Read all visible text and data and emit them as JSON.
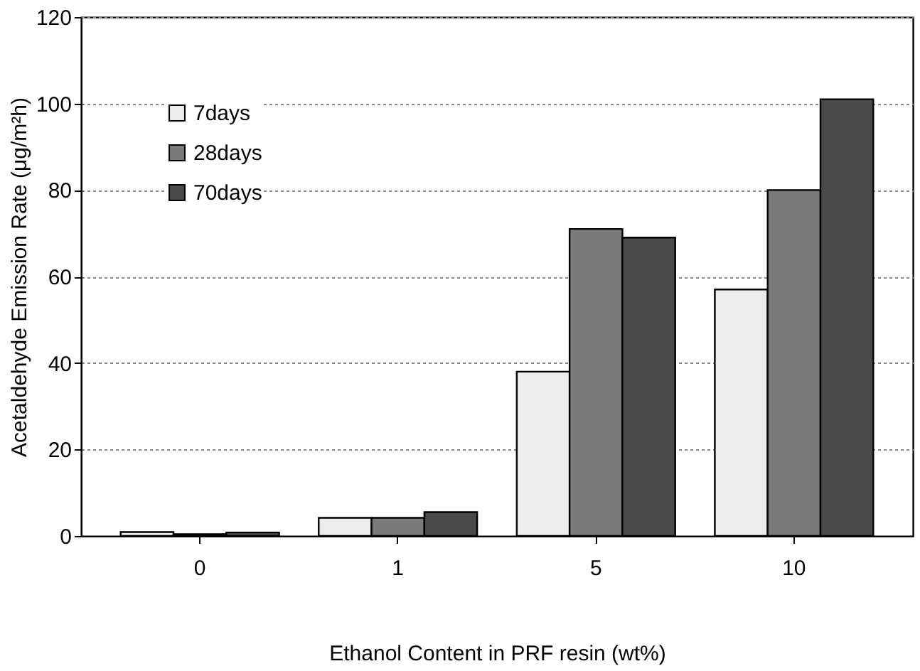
{
  "chart_data": {
    "type": "bar",
    "xlabel": "Ethanol Content in PRF resin (wt%)",
    "ylabel": "Acetaldehyde Emission Rate (μg/m²h)",
    "categories": [
      "0",
      "1",
      "5",
      "10"
    ],
    "series": [
      {
        "name": "7days",
        "color": "#ececec",
        "values": [
          0.9,
          4.2,
          38,
          57
        ]
      },
      {
        "name": "28days",
        "color": "#7a7a7a",
        "values": [
          0.4,
          4.2,
          71,
          80
        ]
      },
      {
        "name": "70days",
        "color": "#4a4a4a",
        "values": [
          0.8,
          5.5,
          69,
          101
        ]
      }
    ],
    "ylim": [
      0,
      120
    ],
    "yticks": [
      0,
      20,
      40,
      60,
      80,
      100,
      120
    ],
    "grid": "y",
    "legend": "top left"
  }
}
